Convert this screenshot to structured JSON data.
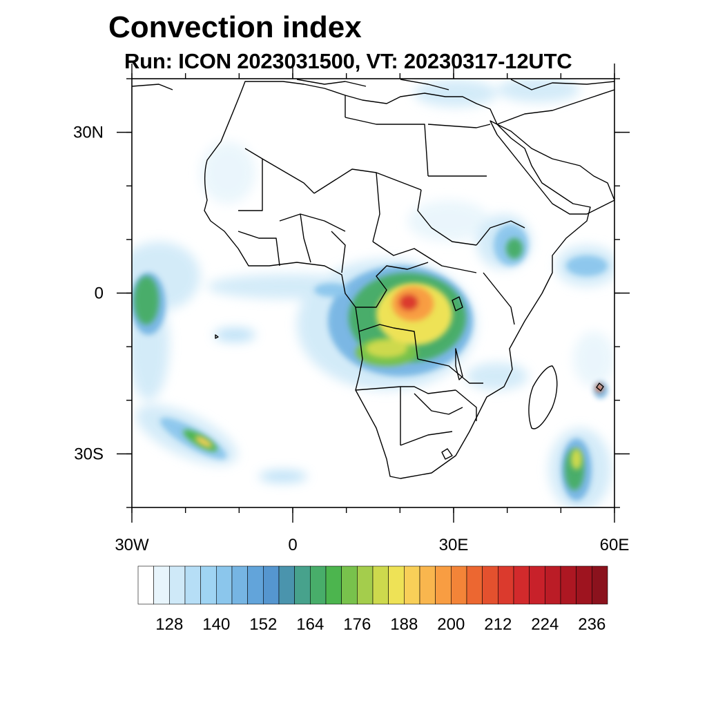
{
  "header": {
    "title": "Convection index",
    "subtitle": "Run: ICON 2023031500,  VT: 20230317-12UTC"
  },
  "map": {
    "lon_range": [
      -30,
      60
    ],
    "lat_range": [
      -40,
      40
    ],
    "lon_major_ticks": [
      {
        "value": -30,
        "label": "30W"
      },
      {
        "value": 0,
        "label": "0"
      },
      {
        "value": 30,
        "label": "30E"
      },
      {
        "value": 60,
        "label": "60E"
      }
    ],
    "lat_major_ticks": [
      {
        "value": 30,
        "label": "30N"
      },
      {
        "value": 0,
        "label": "0"
      },
      {
        "value": -30,
        "label": "30S"
      }
    ],
    "minor_tick_step_deg": 10,
    "land_outline_color": "#000000",
    "background_color": "#ffffff"
  },
  "colorbar": {
    "levels": [
      120,
      124,
      128,
      132,
      136,
      140,
      144,
      148,
      152,
      156,
      160,
      164,
      168,
      172,
      176,
      180,
      184,
      188,
      192,
      196,
      200,
      204,
      208,
      212,
      216,
      220,
      224,
      228,
      232,
      236,
      240
    ],
    "colors": [
      "#ffffff",
      "#e8f5fc",
      "#cfe9f8",
      "#b6def6",
      "#9fd4f3",
      "#8bc6ec",
      "#76b5e3",
      "#62a4da",
      "#5596cf",
      "#4a94ad",
      "#47a28c",
      "#48ad6a",
      "#4cb54e",
      "#78c24c",
      "#a4cd4c",
      "#cdd94d",
      "#eee256",
      "#f8cf58",
      "#f9b64e",
      "#f89d42",
      "#f38438",
      "#ec6731",
      "#e4512e",
      "#db3a2d",
      "#d22a2c",
      "#c8212a",
      "#bb1c26",
      "#ad1722",
      "#9e141f",
      "#8b121d"
    ],
    "labels": [
      "128",
      "140",
      "152",
      "164",
      "176",
      "188",
      "200",
      "212",
      "224",
      "236"
    ]
  }
}
